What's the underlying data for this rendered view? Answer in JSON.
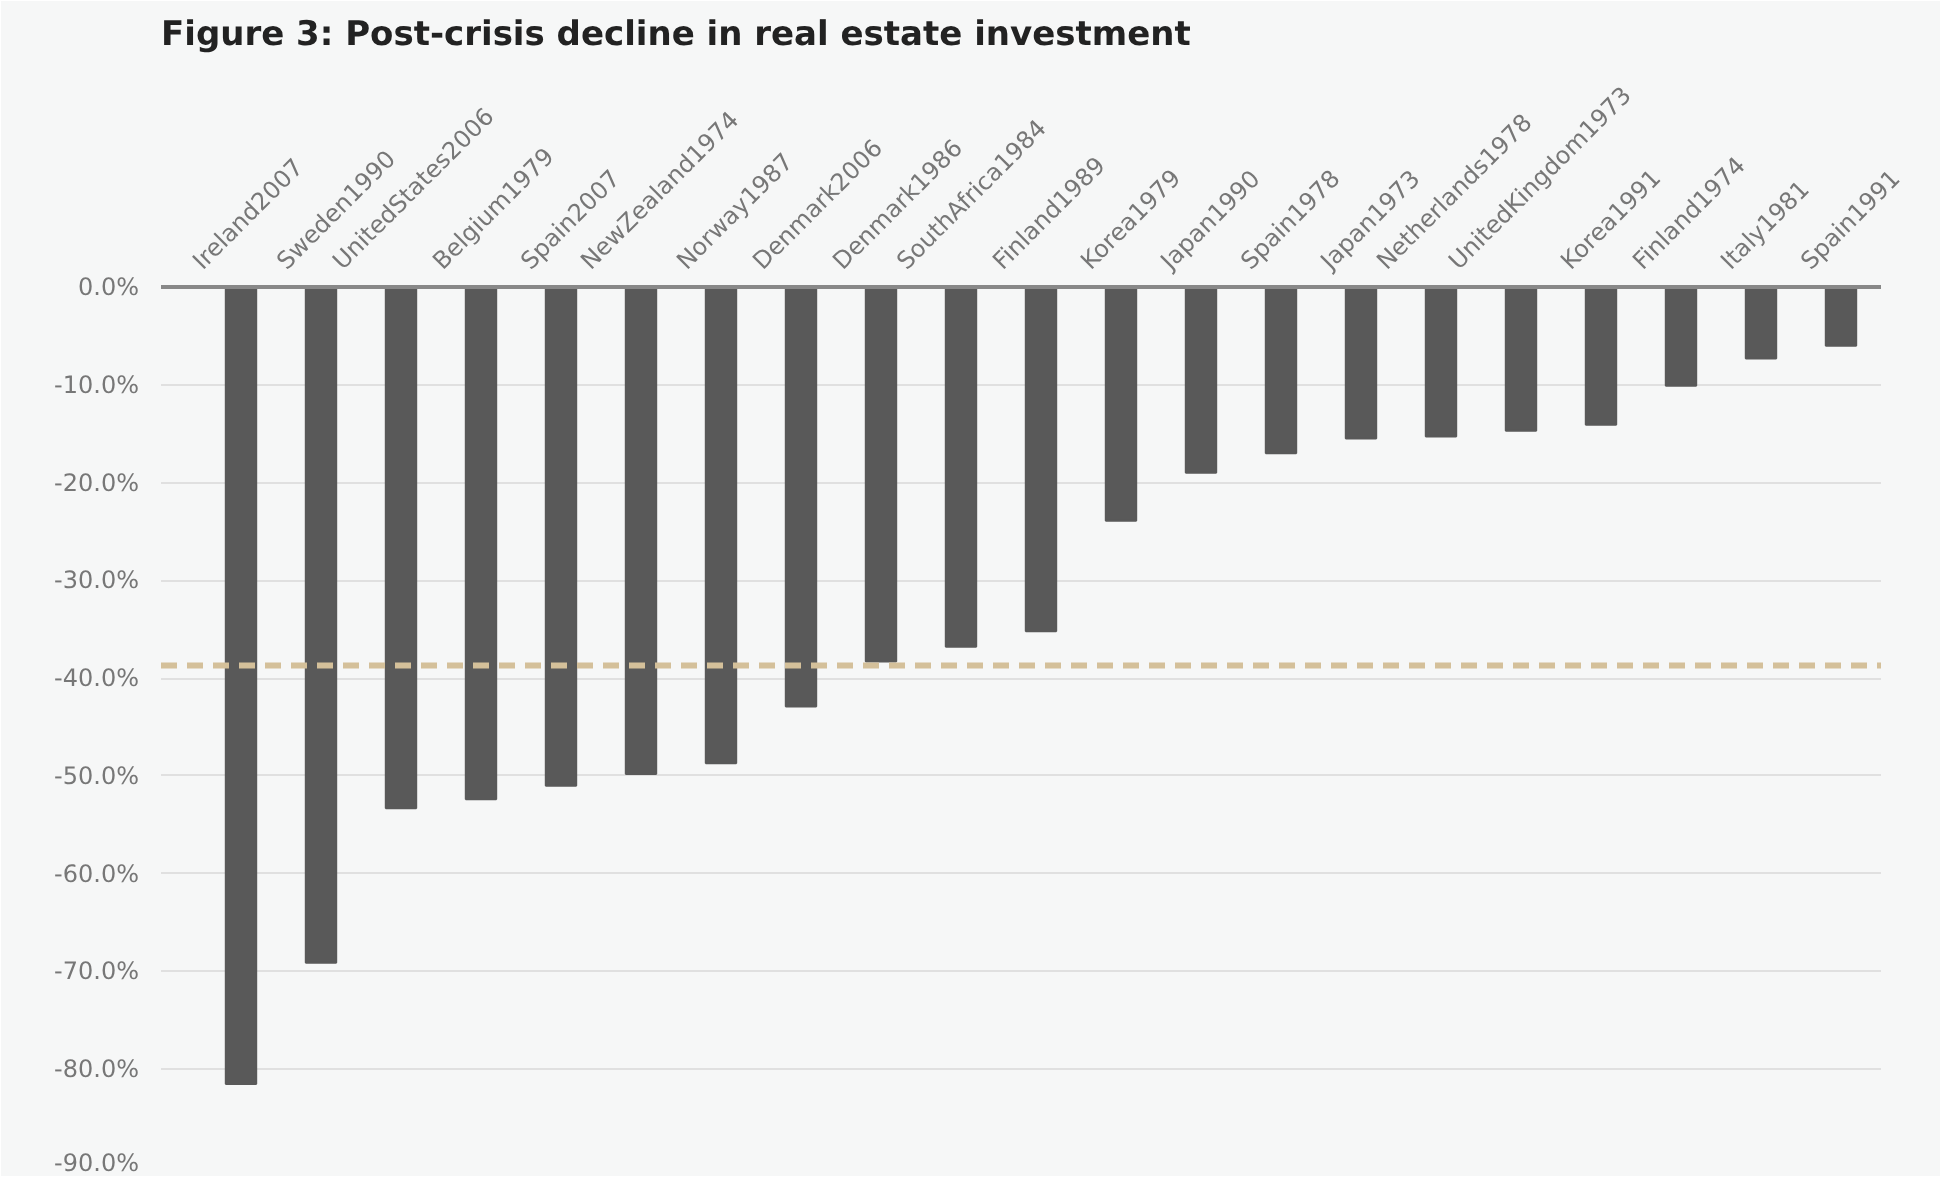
{
  "chart_data": {
    "type": "bar",
    "title": "Figure 3: Post-crisis decline in real estate investment",
    "categories": [
      "Ireland2007",
      "Sweden1990",
      "UnitedStates2006",
      "Belgium1979",
      "Spain2007",
      "NewZealand1974",
      "Norway1987",
      "Denmark2006",
      "Denmark1986",
      "SouthAfrica1984",
      "Finland1989",
      "Korea1979",
      "Japan1990",
      "Spain1978",
      "Japan1973",
      "Netherlands1978",
      "UnitedKingdom1973",
      "Korea1991",
      "Finland1974",
      "Italy1981",
      "Spain1991"
    ],
    "values": [
      -81.5,
      -69.1,
      -53.3,
      -52.4,
      -51.0,
      -49.8,
      -48.7,
      -42.9,
      -38.3,
      -36.8,
      -35.2,
      -23.9,
      -19.0,
      -17.0,
      -15.5,
      -15.3,
      -14.7,
      -14.1,
      -10.1,
      -7.3,
      -6.0
    ],
    "color": "#595959",
    "ylim": [
      -90,
      0
    ],
    "yticks": [
      {
        "value": 0,
        "label": "0.0%"
      },
      {
        "value": -10,
        "label": "-10.0%"
      },
      {
        "value": -20,
        "label": "-20.0%"
      },
      {
        "value": -30,
        "label": "-30.0%"
      },
      {
        "value": -40,
        "label": "-40.0%"
      },
      {
        "value": -50,
        "label": "-50.0%"
      },
      {
        "value": -60,
        "label": "-60.0%"
      },
      {
        "value": -70,
        "label": "-70.0%"
      },
      {
        "value": -80,
        "label": "-80.0%"
      },
      {
        "value": -90,
        "label": "-90.0%"
      }
    ],
    "grid": "y",
    "ref_lines": [
      {
        "axis": "y",
        "value": -38.7,
        "color": "#d4c09a",
        "line_style": "dashed"
      }
    ]
  }
}
